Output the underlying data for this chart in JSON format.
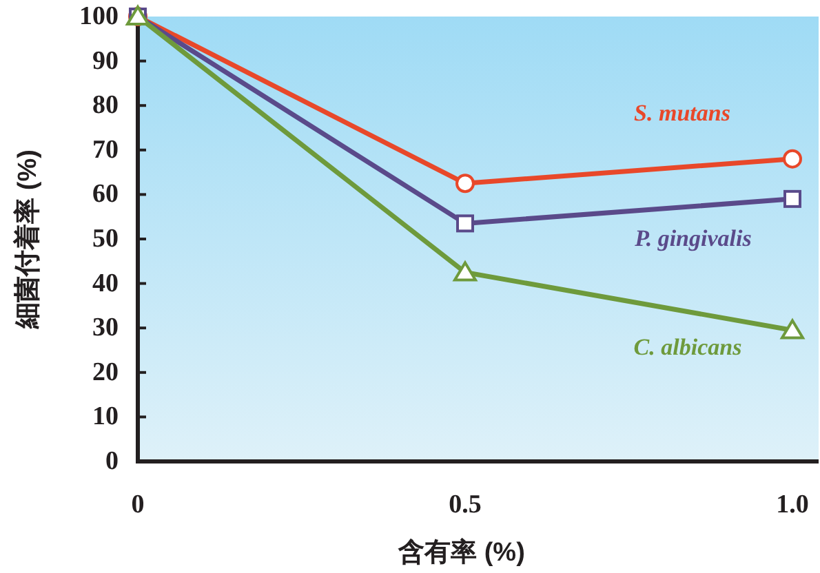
{
  "chart_data": {
    "type": "line",
    "xlabel": "含有率 (%)",
    "ylabel": "細菌付着率 (%)",
    "x": [
      0,
      0.5,
      1.0
    ],
    "xlim": [
      0,
      1.04
    ],
    "xticks": [
      0,
      0.5,
      {
        "value": 1.0,
        "label": "1.0"
      }
    ],
    "ylim": [
      0,
      100
    ],
    "yticks": [
      0,
      10,
      20,
      30,
      40,
      50,
      60,
      70,
      80,
      90,
      100
    ],
    "grid": false,
    "series": [
      {
        "name": "S. mutans",
        "color": "#e8482a",
        "marker": "circle",
        "values": [
          100,
          62.5,
          68
        ]
      },
      {
        "name": "P. gingivalis",
        "color": "#5a4a8a",
        "marker": "square",
        "values": [
          100,
          53.5,
          59
        ]
      },
      {
        "name": "C. albicans",
        "color": "#6e9a3c",
        "marker": "triangle",
        "values": [
          100,
          42.5,
          29.5
        ]
      }
    ]
  }
}
